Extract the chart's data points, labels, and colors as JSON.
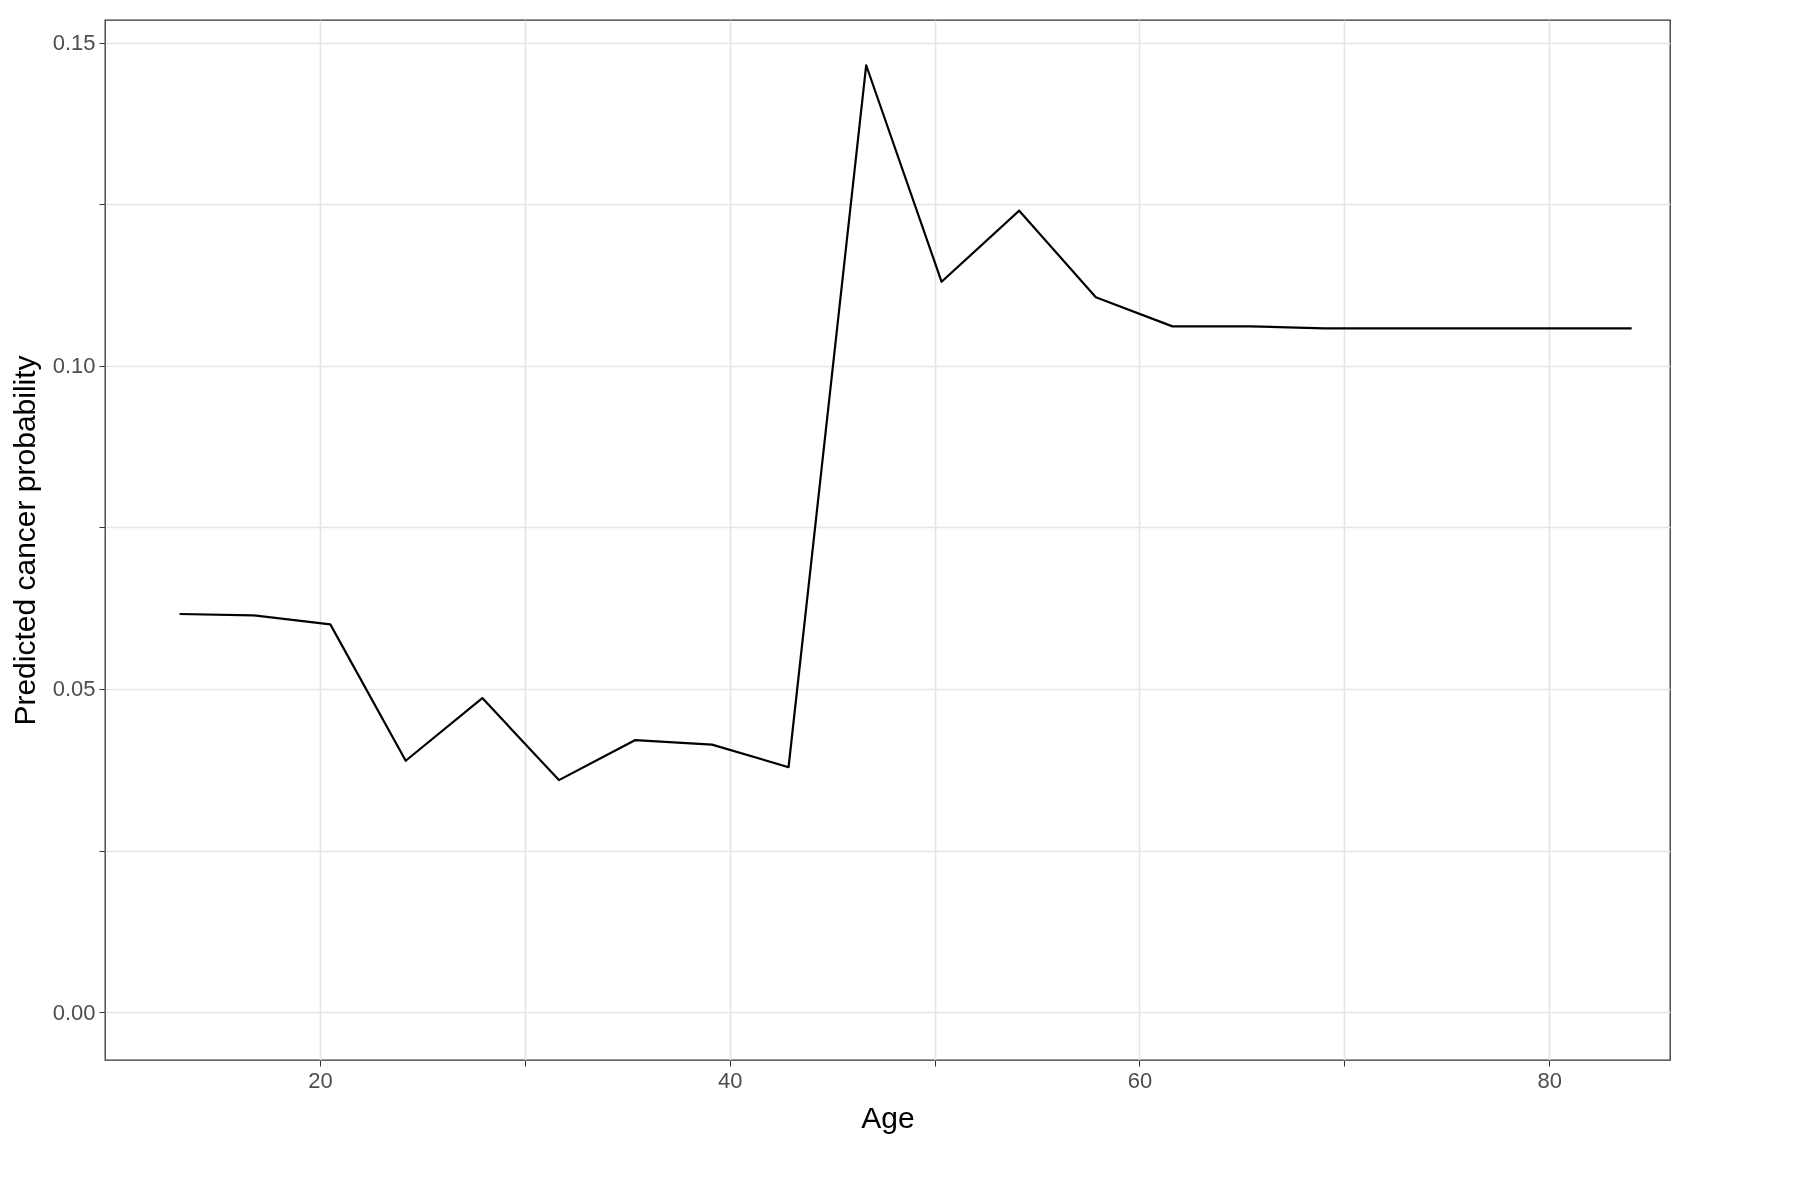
{
  "chart_data": {
    "type": "line",
    "xlabel": "Age",
    "ylabel": "Predicted cancer probability",
    "x": [
      13.14,
      16.71,
      20.5,
      24.18,
      27.92,
      31.66,
      35.39,
      39.13,
      42.87,
      46.66,
      50.34,
      54.13,
      57.87,
      61.61,
      65.4,
      69.02,
      72.82,
      76.55,
      84.03
    ],
    "series": [
      {
        "color": "#000000",
        "values": [
          0.0616,
          0.0614,
          0.06,
          0.0389,
          0.0486,
          0.0359,
          0.0421,
          0.0414,
          0.0379,
          0.1465,
          0.113,
          0.124,
          0.1106,
          0.1061,
          0.1061,
          0.1058,
          0.1058,
          0.1058,
          0.1058
        ]
      }
    ],
    "xlim": [
      9.5,
      85.9
    ],
    "ylim": [
      -0.0074,
      0.1535
    ],
    "xticks": [
      20,
      {
        "value": 30,
        "label": null
      },
      40,
      {
        "value": 50,
        "label": null
      },
      60,
      {
        "value": 70,
        "label": null
      },
      80
    ],
    "yticks": [
      "0.00",
      {
        "value": 0.025,
        "label": null
      },
      {
        "value": 0.05,
        "label": "0.05"
      },
      {
        "value": 0.075,
        "label": null
      },
      {
        "value": 0.1,
        "label": "0.10"
      },
      {
        "value": 0.125,
        "label": null
      },
      {
        "value": 0.15,
        "label": "0.15"
      }
    ],
    "grid": true,
    "marker": "none",
    "line_style": "solid"
  }
}
